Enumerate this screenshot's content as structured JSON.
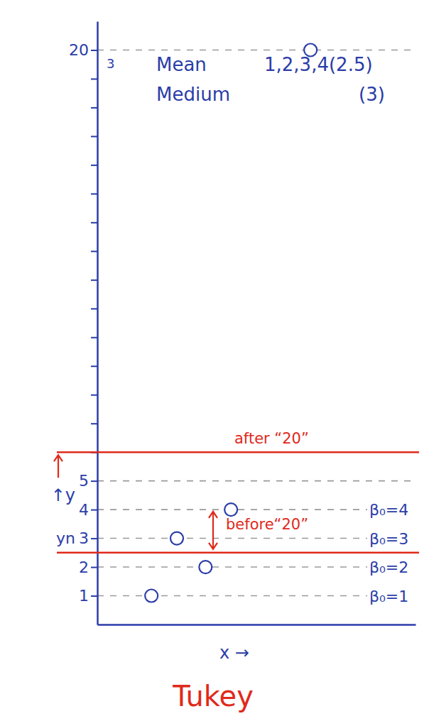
{
  "chart_data": {
    "type": "scatter",
    "title": "Tukey",
    "x_label": "x →",
    "y_label": "↑y",
    "x": [
      1.7,
      3.4,
      2.5,
      4.2,
      6.7
    ],
    "values": [
      1,
      2,
      3,
      4,
      20
    ],
    "value_labels": [
      "β₀=1",
      "β₀=2",
      "β₀=3",
      "β₀=4",
      null
    ],
    "data_labels": true,
    "marker": "open_circle",
    "color": "#2b3da8",
    "xlim": [
      0,
      10
    ],
    "ylim": [
      0,
      21
    ],
    "yticks": [
      1,
      2,
      3,
      4,
      5,
      {
        "value": 6,
        "label": null
      },
      {
        "value": 7,
        "label": null
      },
      {
        "value": 8,
        "label": null
      },
      {
        "value": 9,
        "label": null
      },
      {
        "value": 10,
        "label": null
      },
      {
        "value": 11,
        "label": null
      },
      {
        "value": 12,
        "label": null
      },
      {
        "value": 13,
        "label": null
      },
      {
        "value": 14,
        "label": null
      },
      {
        "value": 15,
        "label": null
      },
      {
        "value": 16,
        "label": null
      },
      {
        "value": 17,
        "label": null
      },
      {
        "value": 18,
        "label": null
      },
      {
        "value": 19,
        "label": null
      },
      20
    ],
    "grid": true,
    "tick_labels": "y",
    "reference_lines": [
      {
        "value": 2.5,
        "label": "before“20”",
        "color": "#e02a1b"
      },
      {
        "value": 6,
        "label": "after “20”",
        "color": "#e02a1b"
      }
    ],
    "annotations": [
      "Mean",
      "1,2,3,4(2.5)",
      "Medium",
      "(3)",
      "3",
      "yn"
    ]
  }
}
